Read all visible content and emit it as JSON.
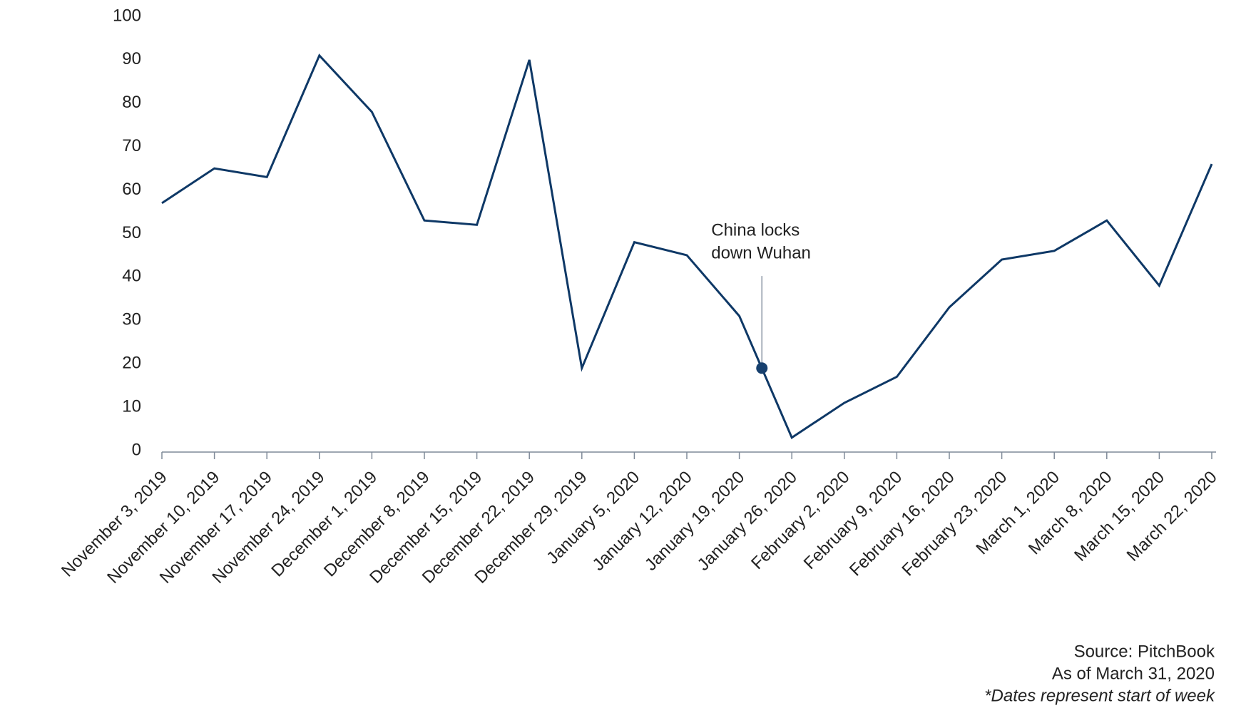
{
  "chart_data": {
    "type": "line",
    "categories": [
      "November 3, 2019",
      "November 10, 2019",
      "November 17, 2019",
      "November 24, 2019",
      "December 1, 2019",
      "December 8, 2019",
      "December 15, 2019",
      "December 22, 2019",
      "December 29, 2019",
      "January 5, 2020",
      "January 12, 2020",
      "January 19, 2020",
      "January 26, 2020",
      "February 2, 2020",
      "February 9, 2020",
      "February 16, 2020",
      "February 23, 2020",
      "March 1, 2020",
      "March 8, 2020",
      "March 15, 2020",
      "March 22, 2020"
    ],
    "values": [
      57,
      65,
      63,
      91,
      78,
      53,
      52,
      90,
      19,
      48,
      45,
      31,
      3,
      11,
      17,
      33,
      44,
      46,
      53,
      38,
      66
    ],
    "color": "#0e3866",
    "ylim": [
      0,
      100
    ],
    "yticks": [
      0,
      10,
      20,
      30,
      40,
      50,
      60,
      70,
      80,
      90,
      100
    ],
    "grid": false,
    "annotations": [
      {
        "lines": [
          "China locks",
          "down Wuhan"
        ],
        "x": 11.43,
        "y": 19
      }
    ],
    "source": "Source: PitchBook",
    "as_of": "As of March 31, 2020",
    "note": "*Dates represent start of week"
  }
}
